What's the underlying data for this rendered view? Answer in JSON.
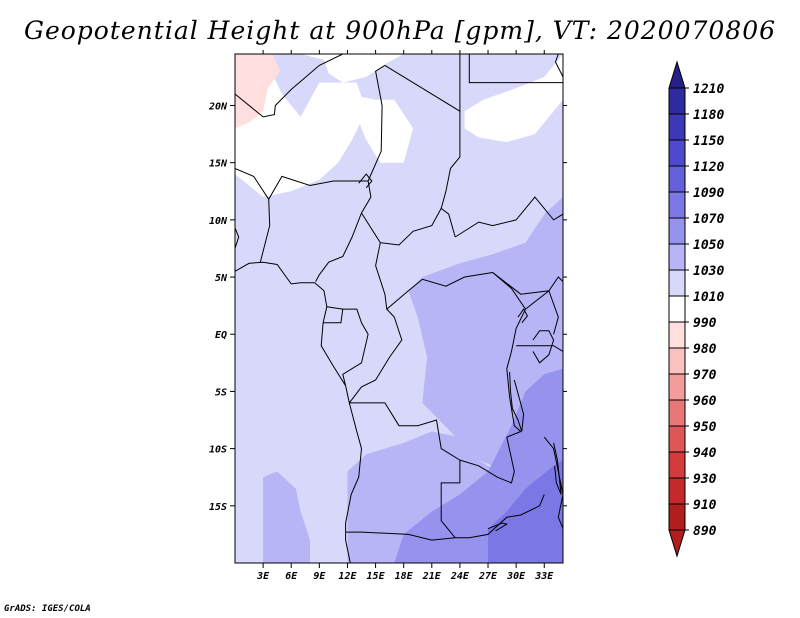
{
  "title": "Geopotential Height at 900hPa [gpm], VT: 2020070806",
  "credit": "GrADS: IGES/COLA",
  "map": {
    "region": "Central Africa",
    "variable": "Geopotential Height",
    "level": "900hPa",
    "units": "gpm",
    "valid_time": "2020070806",
    "lon_range": [
      0,
      35
    ],
    "lat_range": [
      -20,
      24.5
    ],
    "lon_ticks": [
      3,
      6,
      9,
      12,
      15,
      18,
      21,
      24,
      27,
      30,
      33
    ],
    "lon_labels": [
      "3E",
      "6E",
      "9E",
      "12E",
      "15E",
      "18E",
      "21E",
      "24E",
      "27E",
      "30E",
      "33E"
    ],
    "lat_ticks": [
      20,
      15,
      10,
      5,
      0,
      -5,
      -10,
      -15
    ],
    "lat_labels": [
      "20N",
      "15N",
      "10N",
      "5N",
      "EQ",
      "5S",
      "10S",
      "15S"
    ]
  },
  "colorbar": {
    "levels": [
      "1210",
      "1180",
      "1150",
      "1120",
      "1090",
      "1070",
      "1050",
      "1030",
      "1010",
      "990",
      "980",
      "970",
      "960",
      "950",
      "940",
      "930",
      "910",
      "890"
    ],
    "colors": [
      "#232088",
      "#2e2ba0",
      "#3c38b8",
      "#4d4acc",
      "#6360da",
      "#7b78e5",
      "#9693ef",
      "#b7b5f6",
      "#d8d8fb",
      "#ffffff",
      "#ffdede",
      "#fbc0c0",
      "#f29c9c",
      "#e87777",
      "#df5656",
      "#d43c3c",
      "#c42a2a",
      "#b01e1e"
    ]
  },
  "fields": {
    "background": "#d8d8fb",
    "white": "#ffffff",
    "pink": "#ffdede",
    "level_1050": "#b7b5f6",
    "level_1070": "#9693ef",
    "level_1090": "#7b78e5",
    "border": "#000000"
  }
}
